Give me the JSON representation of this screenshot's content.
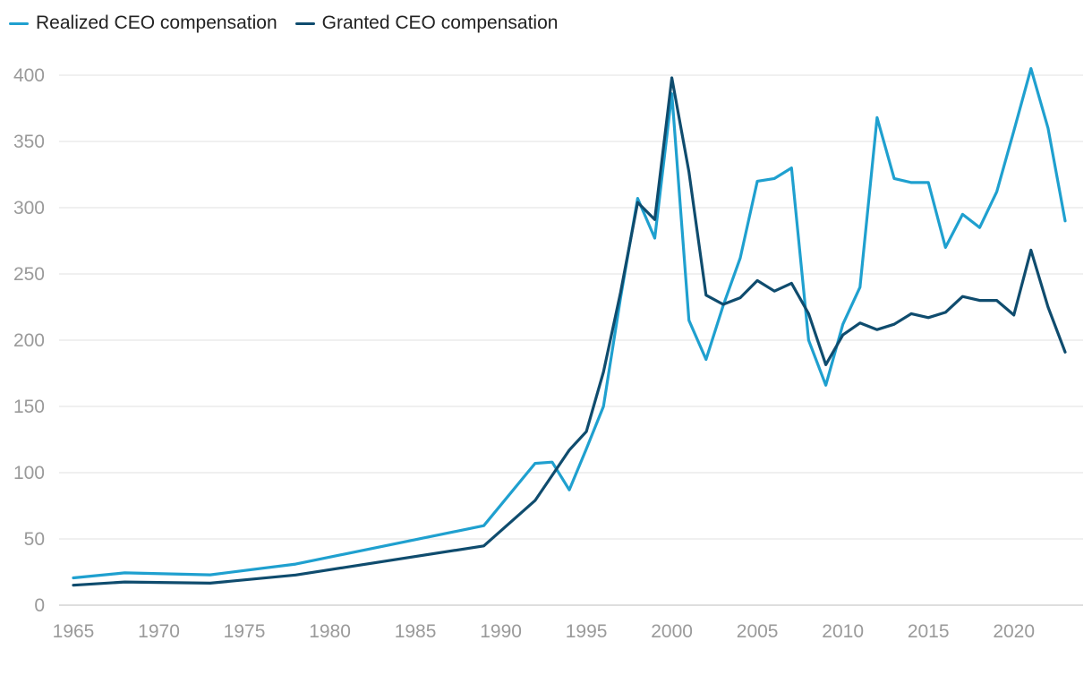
{
  "chart_data": {
    "type": "line",
    "title": "",
    "xlabel": "",
    "ylabel": "",
    "xlim": [
      1965,
      2023
    ],
    "ylim": [
      0,
      400
    ],
    "yticks": [
      0,
      50,
      100,
      150,
      200,
      250,
      300,
      350,
      400
    ],
    "xticks": [
      1965,
      1970,
      1975,
      1980,
      1985,
      1990,
      1995,
      2000,
      2005,
      2010,
      2015,
      2020
    ],
    "legend_position": "top-left",
    "grid": true,
    "series": [
      {
        "name": "Realized CEO compensation",
        "color": "#1fa0cf",
        "x": [
          1965,
          1968,
          1973,
          1978,
          1989,
          1992,
          1993,
          1994,
          1995,
          1996,
          1997,
          1998,
          1999,
          2000,
          2001,
          2002,
          2003,
          2004,
          2005,
          2006,
          2007,
          2008,
          2009,
          2010,
          2011,
          2012,
          2013,
          2014,
          2015,
          2016,
          2017,
          2018,
          2019,
          2020,
          2021,
          2022,
          2023
        ],
        "values": [
          20.6,
          24.4,
          22.9,
          31.0,
          60.0,
          107.0,
          108.0,
          87.0,
          118.0,
          150.0,
          232.0,
          307.0,
          277.0,
          386.0,
          215.0,
          185.5,
          226.0,
          262.0,
          320.0,
          322.0,
          330.0,
          200.0,
          166.0,
          212.0,
          240.0,
          368.0,
          322.0,
          319.0,
          319.0,
          270.0,
          295.0,
          285.0,
          312.0,
          358.0,
          405.0,
          360.0,
          290.0
        ]
      },
      {
        "name": "Granted CEO compensation",
        "color": "#0f4c6e",
        "x": [
          1965,
          1968,
          1973,
          1978,
          1989,
          1992,
          1993,
          1994,
          1995,
          1996,
          1997,
          1998,
          1999,
          2000,
          2001,
          2002,
          2003,
          2004,
          2005,
          2006,
          2007,
          2008,
          2009,
          2010,
          2011,
          2012,
          2013,
          2014,
          2015,
          2016,
          2017,
          2018,
          2019,
          2020,
          2021,
          2022,
          2023
        ],
        "values": [
          15.1,
          17.5,
          16.6,
          22.8,
          44.7,
          79.0,
          98.0,
          117.0,
          131.0,
          176.0,
          236.0,
          304.0,
          291.0,
          398.0,
          327.0,
          234.0,
          227.0,
          232.0,
          245.0,
          237.0,
          243.0,
          220.0,
          181.5,
          204.0,
          213.0,
          208.0,
          212.0,
          220.0,
          217.0,
          221.0,
          233.0,
          230.0,
          230.0,
          219.0,
          268.0,
          225.0,
          191.0
        ]
      }
    ]
  }
}
